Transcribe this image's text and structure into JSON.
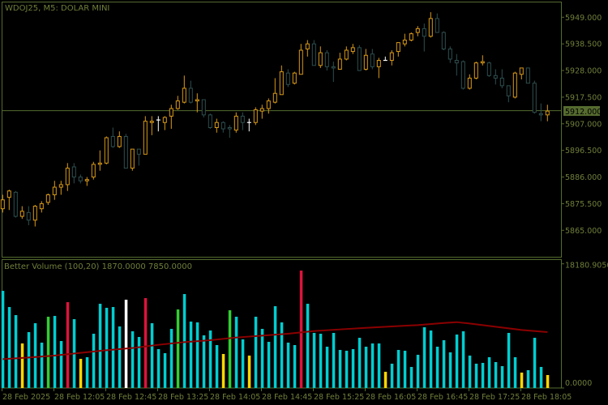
{
  "header": {
    "title": "WDOJ25, M5:  DOLAR MINI"
  },
  "colors": {
    "frame": "#556b2f",
    "axis_text": "#6f7f3a",
    "bull": "#d99a1a",
    "bear": "#2f4f4f",
    "doji": "#ffffff",
    "price_line": "#556b2f",
    "price_box": "#556b2f",
    "vol": {
      "normal": "#00ced1",
      "low": "#ffd700",
      "climax": "#dc143c",
      "churn": "#32cd32",
      "climax_churn": "#ffffff"
    },
    "ma": "#8b0000"
  },
  "price_axis": {
    "labels": [
      "5949.000",
      "5938.500",
      "5928.000",
      "5917.500",
      "5907.000",
      "5896.500",
      "5886.000",
      "5875.500",
      "5865.000"
    ],
    "current_price": "5912.000"
  },
  "volume_axis": {
    "labels": [
      "18180.9050",
      "0.0000"
    ]
  },
  "indicator": {
    "label": "Better Volume (100,20) 1870.0000 7850.0000"
  },
  "time_axis": {
    "labels": [
      "28 Feb 2025",
      "28 Feb 12:05",
      "28 Feb 12:45",
      "28 Feb 13:25",
      "28 Feb 14:05",
      "28 Feb 14:45",
      "28 Feb 15:25",
      "28 Feb 16:05",
      "28 Feb 16:45",
      "28 Feb 17:25",
      "28 Feb 18:05"
    ]
  },
  "chart_data": [
    {
      "type": "candlestick",
      "title": "WDOJ25, M5:  DOLAR MINI",
      "ylim": [
        5860,
        5954
      ],
      "current_price": 5912.0,
      "ohlc_fields": [
        "open",
        "high",
        "low",
        "close"
      ],
      "candles": [
        [
          5873.5,
          5879,
          5872,
          5877
        ],
        [
          5878,
          5881,
          5873,
          5880.5
        ],
        [
          5880,
          5880.5,
          5870,
          5870.5
        ],
        [
          5870.5,
          5874.5,
          5869.5,
          5872.5
        ],
        [
          5872,
          5874.5,
          5867,
          5869
        ],
        [
          5869,
          5875,
          5866.5,
          5874.5
        ],
        [
          5873.5,
          5876.5,
          5872,
          5875.5
        ],
        [
          5876,
          5879.5,
          5875,
          5879
        ],
        [
          5879,
          5884.5,
          5877,
          5882
        ],
        [
          5882,
          5884.5,
          5879,
          5883
        ],
        [
          5883,
          5891.5,
          5880.5,
          5889.5
        ],
        [
          5890,
          5891.5,
          5883.5,
          5886
        ],
        [
          5886,
          5887,
          5883.5,
          5884.5
        ],
        [
          5884.5,
          5886,
          5882.5,
          5885
        ],
        [
          5886,
          5892,
          5885,
          5891
        ],
        [
          5891,
          5896.5,
          5888.5,
          5891.5
        ],
        [
          5891.5,
          5902,
          5891,
          5901.5
        ],
        [
          5902,
          5905.5,
          5897.5,
          5898
        ],
        [
          5898,
          5904,
          5897.5,
          5902
        ],
        [
          5902,
          5903,
          5889.5,
          5889.5
        ],
        [
          5889.5,
          5897,
          5888.5,
          5897
        ],
        [
          5897,
          5897,
          5890.5,
          5895
        ],
        [
          5895,
          5910,
          5895,
          5908
        ],
        [
          5907.5,
          5910,
          5902.5,
          5908
        ],
        [
          5908.5,
          5910,
          5904,
          5908.5
        ],
        [
          5907.5,
          5910,
          5904.5,
          5909.5
        ],
        [
          5910,
          5914.5,
          5905,
          5913
        ],
        [
          5913,
          5918,
          5912.5,
          5916
        ],
        [
          5915.5,
          5926,
          5915,
          5921
        ],
        [
          5921,
          5924,
          5915,
          5915.5
        ],
        [
          5916,
          5919,
          5911.5,
          5916.5
        ],
        [
          5916.5,
          5916.5,
          5909.5,
          5910.5
        ],
        [
          5910.5,
          5911,
          5905,
          5905.5
        ],
        [
          5905.5,
          5909,
          5903.5,
          5907.5
        ],
        [
          5907.5,
          5908,
          5903.5,
          5905
        ],
        [
          5905.5,
          5906.5,
          5901.5,
          5905
        ],
        [
          5904.5,
          5911.5,
          5903.5,
          5910
        ],
        [
          5910,
          5911.5,
          5904.5,
          5907.5
        ],
        [
          5907.5,
          5909,
          5904,
          5907.5
        ],
        [
          5907.5,
          5913.5,
          5906.5,
          5912.5
        ],
        [
          5912,
          5914.5,
          5909,
          5913
        ],
        [
          5913,
          5917,
          5911,
          5916
        ],
        [
          5915.5,
          5925,
          5915,
          5919
        ],
        [
          5918.5,
          5930,
          5918.5,
          5927.5
        ],
        [
          5927,
          5928.5,
          5921.5,
          5922.5
        ],
        [
          5923,
          5927.5,
          5922.5,
          5927
        ],
        [
          5926.5,
          5938.5,
          5926.5,
          5936
        ],
        [
          5936.5,
          5940,
          5933.5,
          5938.5
        ],
        [
          5938.5,
          5940,
          5930,
          5930
        ],
        [
          5930,
          5937.5,
          5929,
          5935
        ],
        [
          5935,
          5936,
          5928,
          5929.5
        ],
        [
          5929.5,
          5931.5,
          5923.5,
          5929
        ],
        [
          5928.5,
          5935,
          5928.5,
          5932.5
        ],
        [
          5932.5,
          5937.5,
          5932,
          5936
        ],
        [
          5935.5,
          5938.5,
          5934.5,
          5937
        ],
        [
          5937,
          5938,
          5928,
          5928
        ],
        [
          5928.5,
          5936.5,
          5928,
          5934
        ],
        [
          5934.5,
          5936.5,
          5928.5,
          5929.5
        ],
        [
          5929.5,
          5933,
          5925,
          5932
        ],
        [
          5932,
          5933.5,
          5932,
          5932
        ],
        [
          5932,
          5936,
          5930,
          5935
        ],
        [
          5935.5,
          5939,
          5933.5,
          5939
        ],
        [
          5938.5,
          5942.5,
          5937.5,
          5940
        ],
        [
          5940,
          5943,
          5939.5,
          5942.5
        ],
        [
          5943,
          5945.5,
          5941.5,
          5944.5
        ],
        [
          5944.5,
          5946.5,
          5935.5,
          5941.5
        ],
        [
          5941.5,
          5951,
          5941,
          5948.5
        ],
        [
          5948.5,
          5950.5,
          5943,
          5943
        ],
        [
          5943,
          5943.5,
          5936,
          5936.5
        ],
        [
          5936.5,
          5937.5,
          5931,
          5932.5
        ],
        [
          5932,
          5934.5,
          5926,
          5931
        ],
        [
          5931.5,
          5932,
          5920.5,
          5921
        ],
        [
          5921,
          5926.5,
          5920.5,
          5925
        ],
        [
          5925,
          5931.5,
          5924.5,
          5931
        ],
        [
          5931,
          5934,
          5930,
          5931.5
        ],
        [
          5931,
          5931.5,
          5925.5,
          5926
        ],
        [
          5926,
          5928.5,
          5922.5,
          5925
        ],
        [
          5925,
          5928.5,
          5921,
          5922
        ],
        [
          5922,
          5922,
          5915.5,
          5918
        ],
        [
          5917.5,
          5927.5,
          5917,
          5927
        ],
        [
          5926.5,
          5929,
          5924.5,
          5929
        ],
        [
          5929,
          5929,
          5923,
          5923
        ],
        [
          5923,
          5924,
          5911,
          5911.5
        ],
        [
          5911,
          5915,
          5908,
          5910.5
        ],
        [
          5910.5,
          5914.5,
          5908,
          5912
        ]
      ]
    },
    {
      "type": "bar",
      "title": "Better Volume (100,20) 1870.0000 7850.0000",
      "ylim": [
        0,
        18180.905
      ],
      "values": [
        14228,
        11857,
        10671,
        6521,
        8181,
        9485,
        6640,
        10434,
        10552,
        6877,
        12568,
        10078,
        4268,
        4506,
        7944,
        12331,
        11738,
        11857,
        9011,
        12924,
        8300,
        7470,
        13161,
        9485,
        5691,
        5098,
        8655,
        11501,
        13754,
        9723,
        9604,
        7707,
        8418,
        6284,
        4980,
        11382,
        10434,
        7114,
        4743,
        10434,
        8655,
        6758,
        11975,
        9604,
        6640,
        6284,
        17192,
        12331,
        8063,
        7944,
        6047,
        8063,
        5573,
        5454,
        5691,
        7351,
        6047,
        6521,
        6521,
        2371,
        3557,
        5573,
        5454,
        3083,
        4861,
        8892,
        8418,
        6047,
        6995,
        5217,
        7825,
        8300,
        4743,
        3557,
        3675,
        4506,
        3794,
        3201,
        8063,
        4506,
        2253,
        2608,
        7351,
        3083,
        1897
      ],
      "bar_types": [
        "normal",
        "normal",
        "normal",
        "low",
        "normal",
        "normal",
        "normal",
        "churn",
        "normal",
        "normal",
        "climax",
        "normal",
        "low",
        "normal",
        "normal",
        "normal",
        "normal",
        "normal",
        "normal",
        "climax_churn",
        "normal",
        "normal",
        "climax",
        "normal",
        "normal",
        "normal",
        "normal",
        "churn",
        "normal",
        "normal",
        "normal",
        "normal",
        "normal",
        "normal",
        "low",
        "churn",
        "normal",
        "normal",
        "low",
        "normal",
        "normal",
        "normal",
        "normal",
        "normal",
        "normal",
        "normal",
        "climax",
        "normal",
        "normal",
        "normal",
        "normal",
        "normal",
        "normal",
        "normal",
        "normal",
        "normal",
        "normal",
        "normal",
        "normal",
        "low",
        "normal",
        "normal",
        "normal",
        "normal",
        "normal",
        "normal",
        "normal",
        "normal",
        "normal",
        "normal",
        "normal",
        "normal",
        "normal",
        "normal",
        "normal",
        "normal",
        "normal",
        "normal",
        "normal",
        "normal",
        "low",
        "normal",
        "normal",
        "normal",
        "low"
      ],
      "ma_line": [
        [
          0,
          4229
        ],
        [
          4,
          4466
        ],
        [
          8,
          4742
        ],
        [
          12,
          5138
        ],
        [
          16,
          5533
        ],
        [
          20,
          5849
        ],
        [
          24,
          6323
        ],
        [
          28,
          6718
        ],
        [
          32,
          6995
        ],
        [
          36,
          7390
        ],
        [
          40,
          7667
        ],
        [
          44,
          7944
        ],
        [
          48,
          8339
        ],
        [
          52,
          8576
        ],
        [
          56,
          8813
        ],
        [
          60,
          9011
        ],
        [
          64,
          9208
        ],
        [
          68,
          9524
        ],
        [
          70,
          9643
        ],
        [
          72,
          9445
        ],
        [
          76,
          8971
        ],
        [
          80,
          8497
        ],
        [
          84,
          8181
        ]
      ]
    }
  ]
}
